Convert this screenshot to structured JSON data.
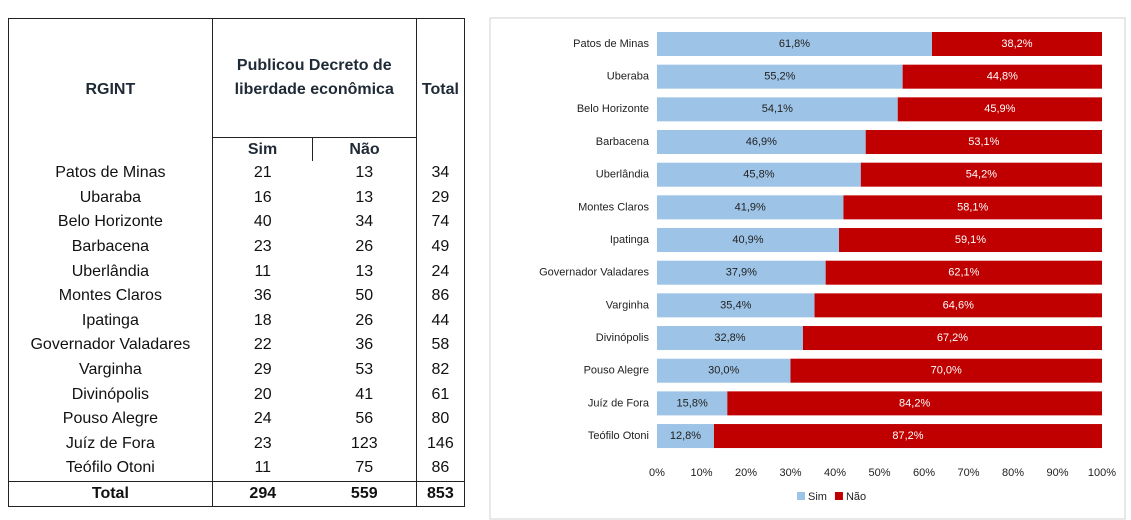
{
  "table": {
    "header": {
      "rgint": "RGINT",
      "group": "Publicou Decreto de liberdade econômica",
      "total": "Total",
      "sub": [
        "Sim",
        "Não"
      ]
    },
    "rows": [
      [
        "Patos de Minas",
        "21",
        "13",
        "34"
      ],
      [
        "Ubaraba",
        "16",
        "13",
        "29"
      ],
      [
        "Belo Horizonte",
        "40",
        "34",
        "74"
      ],
      [
        "Barbacena",
        "23",
        "26",
        "49"
      ],
      [
        "Uberlândia",
        "11",
        "13",
        "24"
      ],
      [
        "Montes Claros",
        "36",
        "50",
        "86"
      ],
      [
        "Ipatinga",
        "18",
        "26",
        "44"
      ],
      [
        "Governador Valadares",
        "22",
        "36",
        "58"
      ],
      [
        "Varginha",
        "29",
        "53",
        "82"
      ],
      [
        "Divinópolis",
        "20",
        "41",
        "61"
      ],
      [
        "Pouso Alegre",
        "24",
        "56",
        "80"
      ],
      [
        "Juíz de Fora",
        "23",
        "123",
        "146"
      ],
      [
        "Teófilo Otoni",
        "11",
        "75",
        "86"
      ]
    ],
    "footer": [
      "Total",
      "294",
      "559",
      "853"
    ]
  },
  "chart_data": {
    "type": "bar",
    "orientation": "horizontal",
    "stacked": true,
    "categories": [
      "Patos de Minas",
      "Uberaba",
      "Belo Horizonte",
      "Barbacena",
      "Uberlândia",
      "Montes Claros",
      "Ipatinga",
      "Governador Valadares",
      "Varginha",
      "Divinópolis",
      "Pouso Alegre",
      "Juíz de Fora",
      "Teófilo Otoni"
    ],
    "series": [
      {
        "name": "Sim",
        "color": "#9dc3e6",
        "values": [
          61.8,
          55.2,
          54.1,
          46.9,
          45.8,
          41.9,
          40.9,
          37.9,
          35.4,
          32.8,
          30.0,
          15.8,
          12.8
        ],
        "value_labels": [
          "61,8%",
          "55,2%",
          "54,1%",
          "46,9%",
          "45,8%",
          "41,9%",
          "40,9%",
          "37,9%",
          "35,4%",
          "32,8%",
          "30,0%",
          "15,8%",
          "12,8%"
        ]
      },
      {
        "name": "Não",
        "color": "#c00000",
        "values": [
          38.2,
          44.8,
          45.9,
          53.1,
          54.2,
          58.1,
          59.1,
          62.1,
          64.6,
          67.2,
          70.0,
          84.2,
          87.2
        ],
        "value_labels": [
          "38,2%",
          "44,8%",
          "45,9%",
          "53,1%",
          "54,2%",
          "58,1%",
          "59,1%",
          "62,1%",
          "64,6%",
          "67,2%",
          "70,0%",
          "84,2%",
          "87,2%"
        ]
      }
    ],
    "xlim": [
      0,
      100
    ],
    "xticks": [
      {
        "value": 0,
        "label": "0%"
      },
      {
        "value": 10,
        "label": "10%"
      },
      {
        "value": 20,
        "label": "20%"
      },
      {
        "value": 30,
        "label": "30%"
      },
      {
        "value": 40,
        "label": "40%"
      },
      {
        "value": 50,
        "label": "50%"
      },
      {
        "value": 60,
        "label": "60%"
      },
      {
        "value": 70,
        "label": "70%"
      },
      {
        "value": 80,
        "label": "80%"
      },
      {
        "value": 90,
        "label": "90%"
      },
      {
        "value": 100,
        "label": "100%"
      }
    ],
    "legend": "bottom"
  }
}
